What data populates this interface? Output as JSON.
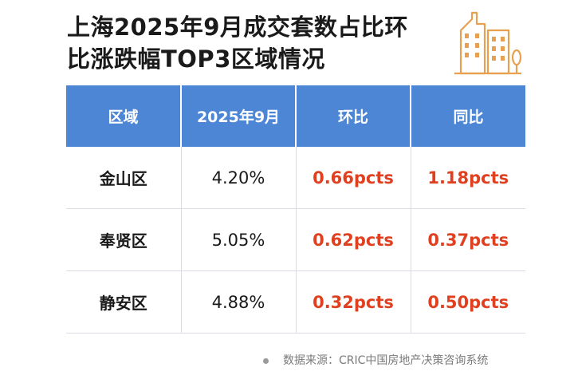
{
  "title": {
    "line1": "上海2025年9月成交套数占比环",
    "line2": "比涨跌幅TOP3区域情况"
  },
  "icon": "building-icon",
  "colors": {
    "header_bg": "#4e86d6",
    "change_text": "#e0401f",
    "icon": "#e8a050"
  },
  "table": {
    "headers": [
      "区域",
      "2025年9月",
      "环比",
      "同比"
    ],
    "rows": [
      {
        "district": "金山区",
        "ratio": "4.20%",
        "mom": "0.66pcts",
        "yoy": "1.18pcts"
      },
      {
        "district": "奉贤区",
        "ratio": "5.05%",
        "mom": "0.62pcts",
        "yoy": "0.37pcts"
      },
      {
        "district": "静安区",
        "ratio": "4.88%",
        "mom": "0.32pcts",
        "yoy": "0.50pcts"
      }
    ]
  },
  "footer": {
    "source": "数据来源：CRIC中国房地产决策咨询系统"
  }
}
